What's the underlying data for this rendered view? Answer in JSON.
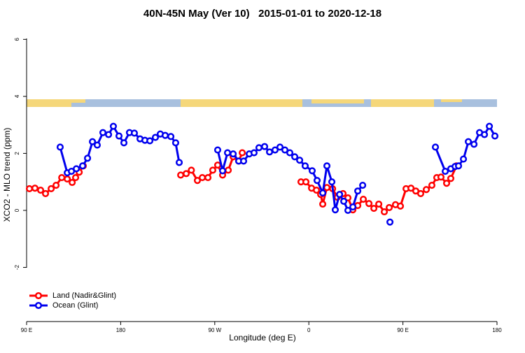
{
  "chart_data": {
    "type": "line",
    "title": "40N-45N May (Ver 10)   2015-01-01 to 2020-12-18",
    "x_label": "Longitude (deg E)",
    "y_label": "XCO2 - MLO trend (ppm)",
    "xlim": [
      90,
      540
    ],
    "xticks": [
      {
        "value": 90,
        "label": "90 E"
      },
      180,
      {
        "value": 270,
        "label": "90 W"
      },
      {
        "value": 360,
        "label": "0"
      },
      {
        "value": 450,
        "label": "90 E"
      },
      {
        "value": 540,
        "label": "180"
      }
    ],
    "ylim": [
      -3.9,
      6.4
    ],
    "yticks": [
      -2,
      0,
      2,
      4,
      6
    ],
    "legend": "bottom-left",
    "series": [
      {
        "name": "Land (Nadir&Glint)",
        "color": "#ff0000",
        "x": [
          92.7,
          98.0,
          103.4,
          108.1,
          113.5,
          118.2,
          123.6,
          128.9,
          133.6,
          136.9,
          140.3,
          144.2,
          null,
          237.4,
          242.7,
          247.6,
          253.4,
          258.1,
          263.5,
          268.1,
          272.8,
          277.5,
          282.9,
          287.6,
          292.9,
          296.3,
          null,
          352.5,
          357.2,
          362.6,
          367.3,
          371.3,
          373.3,
          377.3,
          382.7,
          387.3,
          392.7,
          397.4,
          402.1,
          406.8,
          412.1,
          417.5,
          422.2,
          426.9,
          432.2,
          436.9,
          442.9,
          447.6,
          453.0,
          457.7,
          462.3,
          467.0,
          472.4,
          477.7,
          482.4,
          486.4,
          491.8,
          495.8,
          501.2
        ],
        "values": [
          0.76,
          0.78,
          0.71,
          0.59,
          0.76,
          0.88,
          1.15,
          1.1,
          0.98,
          1.15,
          1.34,
          1.56,
          null,
          1.24,
          1.29,
          1.41,
          1.05,
          1.15,
          1.15,
          1.41,
          1.59,
          1.24,
          1.41,
          1.88,
          1.73,
          2.02,
          null,
          1.0,
          1.0,
          0.78,
          0.71,
          0.56,
          0.22,
          0.8,
          0.76,
          0.46,
          0.59,
          0.44,
          0.02,
          0.17,
          0.39,
          0.24,
          0.07,
          0.22,
          -0.05,
          0.1,
          0.2,
          0.15,
          0.76,
          0.78,
          0.68,
          0.59,
          0.73,
          0.88,
          1.15,
          1.17,
          0.95,
          1.12,
          1.56
        ]
      },
      {
        "name": "Ocean (Glint)",
        "color": "#0000ee",
        "x": [
          122.1,
          128.9,
          132.9,
          137.6,
          143.6,
          148.3,
          153.0,
          157.6,
          163.0,
          168.4,
          173.0,
          178.4,
          183.1,
          188.4,
          193.1,
          198.5,
          203.2,
          207.9,
          213.2,
          217.9,
          222.6,
          228.0,
          232.6,
          236.0,
          null,
          272.8,
          277.5,
          282.2,
          287.6,
          292.9,
          297.6,
          303.0,
          307.6,
          312.3,
          317.7,
          322.4,
          327.7,
          332.4,
          337.1,
          341.8,
          346.5,
          351.2,
          356.5,
          363.2,
          367.9,
          373.3,
          377.3,
          382.0,
          385.3,
          389.4,
          393.4,
          397.4,
          402.1,
          406.8,
          411.5,
          null,
          437.6,
          null,
          481.1,
          490.5,
          495.8,
          499.9,
          503.2,
          507.9,
          512.6,
          518.0,
          523.3,
          528.0,
          532.7,
          538.0
        ],
        "values": [
          2.22,
          1.32,
          1.37,
          1.46,
          1.56,
          1.83,
          2.41,
          2.29,
          2.73,
          2.66,
          2.95,
          2.61,
          2.37,
          2.73,
          2.71,
          2.51,
          2.46,
          2.44,
          2.56,
          2.68,
          2.63,
          2.59,
          2.37,
          1.68,
          null,
          2.12,
          1.39,
          2.02,
          1.98,
          1.73,
          1.73,
          1.98,
          2.02,
          2.2,
          2.24,
          2.05,
          2.12,
          2.22,
          2.12,
          2.02,
          1.88,
          1.76,
          1.56,
          1.39,
          1.05,
          0.61,
          1.56,
          1.0,
          0.02,
          0.56,
          0.32,
          0.0,
          0.12,
          0.68,
          0.88,
          null,
          -0.41,
          null,
          2.22,
          1.37,
          1.46,
          1.54,
          1.56,
          1.8,
          2.41,
          2.32,
          2.73,
          2.66,
          2.95,
          2.61
        ]
      }
    ]
  }
}
